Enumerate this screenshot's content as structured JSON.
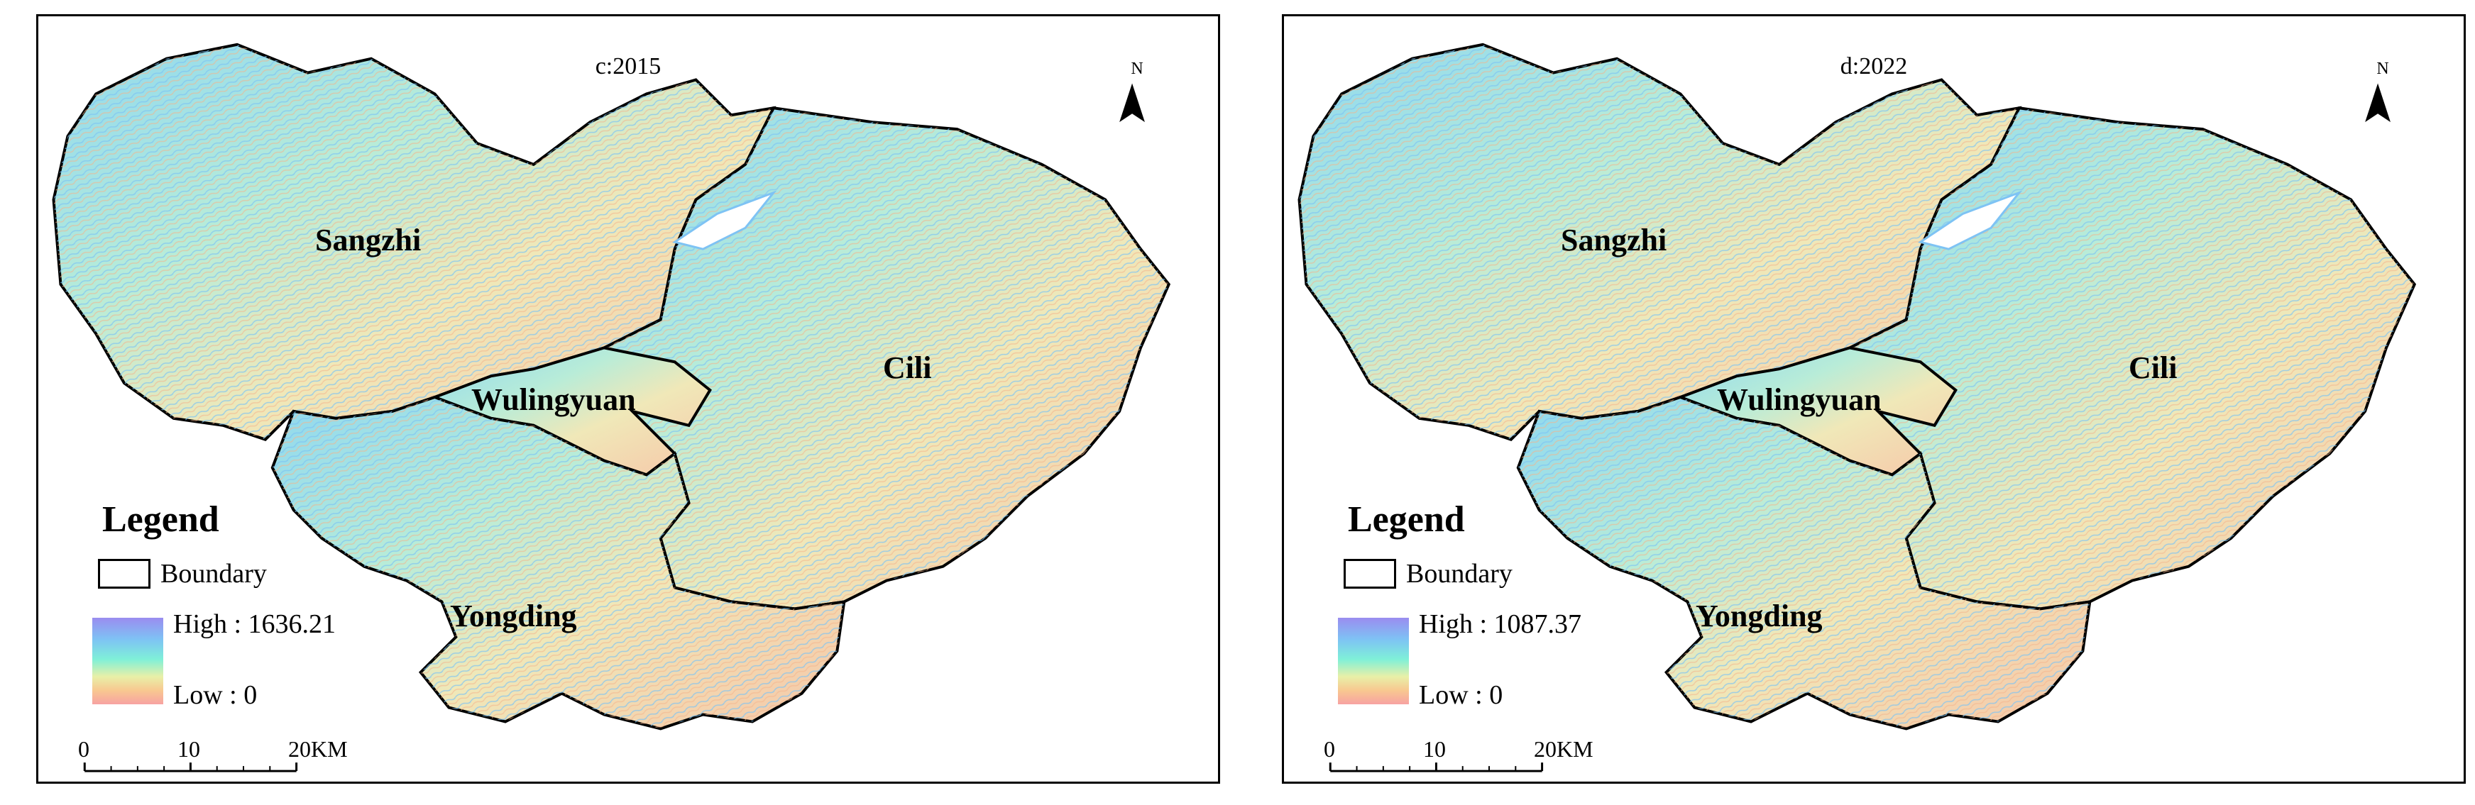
{
  "panels": [
    {
      "title": "c:2015",
      "north": "N",
      "legend": {
        "title": "Legend",
        "boundary": "Boundary",
        "high": "High : 1636.21",
        "low": "Low : 0"
      },
      "scale": {
        "ticks": [
          "0",
          "10",
          "20KM"
        ]
      },
      "regions": [
        "Sangzhi",
        "Wulingyuan",
        "Cili",
        "Yongding"
      ]
    },
    {
      "title": "d:2022",
      "north": "N",
      "legend": {
        "title": "Legend",
        "boundary": "Boundary",
        "high": "High : 1087.37",
        "low": "Low : 0"
      },
      "scale": {
        "ticks": [
          "0",
          "10",
          "20KM"
        ]
      },
      "regions": [
        "Sangzhi",
        "Wulingyuan",
        "Cili",
        "Yongding"
      ]
    }
  ],
  "colors": {
    "high": "#9a8cf0",
    "mid": "#7ff0d8",
    "low": "#f7a2a2",
    "boundary": "#000000"
  }
}
